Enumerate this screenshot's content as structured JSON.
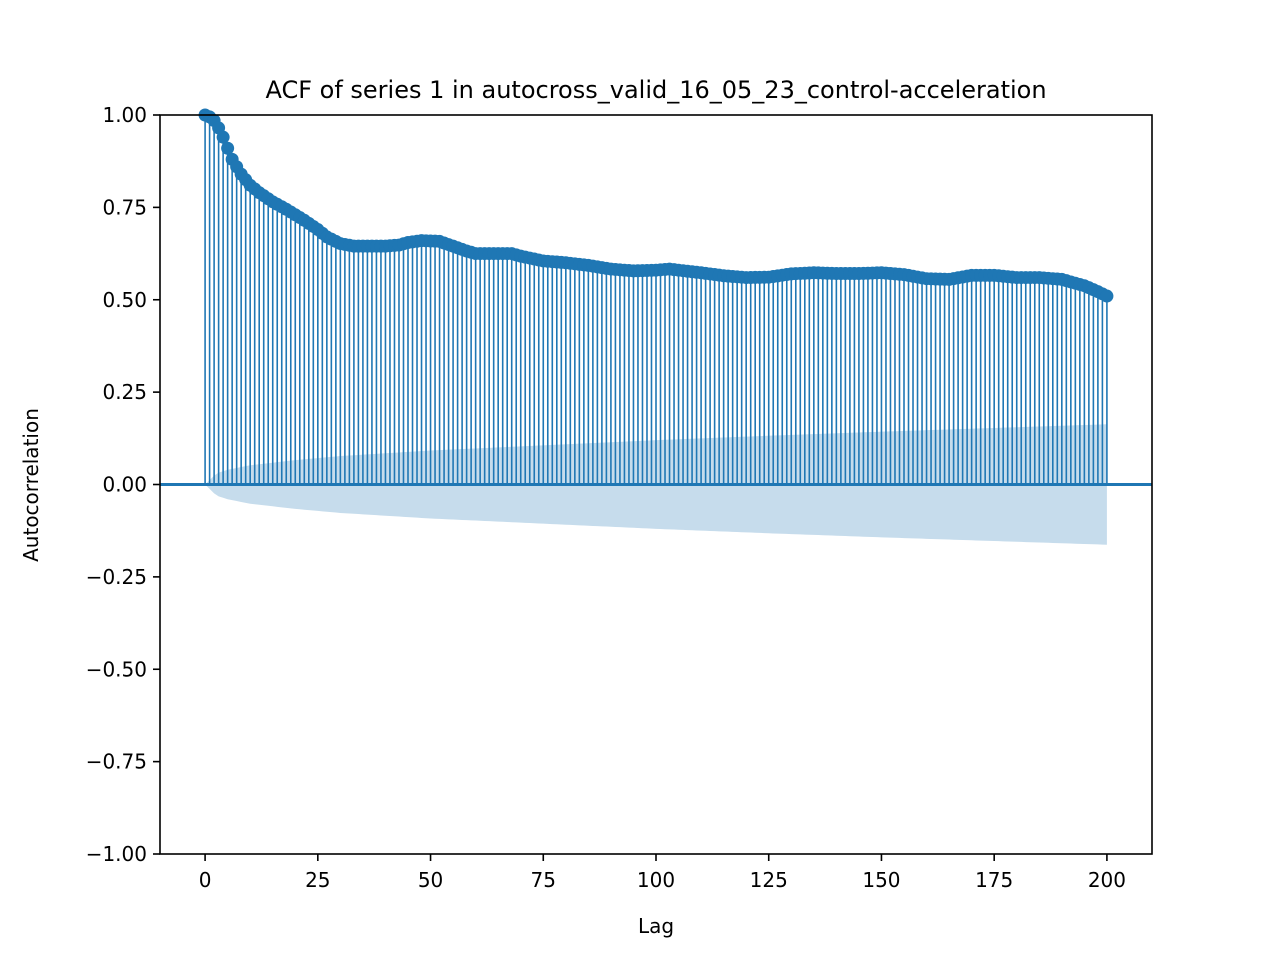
{
  "chart_data": {
    "type": "bar",
    "title": "ACF of series 1 in autocross_valid_16_05_23_control-acceleration",
    "xlabel": "Lag",
    "ylabel": "Autocorrelation",
    "xlim": [
      -10,
      210
    ],
    "ylim": [
      -1.0,
      1.0
    ],
    "xticks": [
      0,
      25,
      50,
      75,
      100,
      125,
      150,
      175,
      200
    ],
    "xtick_labels": [
      "0",
      "25",
      "50",
      "75",
      "100",
      "125",
      "150",
      "175",
      "200"
    ],
    "yticks": [
      -1.0,
      -0.75,
      -0.5,
      -0.25,
      0.0,
      0.25,
      0.5,
      0.75,
      1.0
    ],
    "ytick_labels": [
      "−1.00",
      "−0.75",
      "−0.50",
      "−0.25",
      "0.00",
      "0.25",
      "0.50",
      "0.75",
      "1.00"
    ],
    "grid": false,
    "legend": "none",
    "lags_count": 201,
    "acf_keypoints": [
      [
        0,
        1.0
      ],
      [
        1,
        0.995
      ],
      [
        2,
        0.985
      ],
      [
        3,
        0.965
      ],
      [
        4,
        0.94
      ],
      [
        5,
        0.91
      ],
      [
        6,
        0.88
      ],
      [
        8,
        0.84
      ],
      [
        10,
        0.81
      ],
      [
        12,
        0.79
      ],
      [
        15,
        0.765
      ],
      [
        18,
        0.745
      ],
      [
        20,
        0.73
      ],
      [
        22,
        0.715
      ],
      [
        25,
        0.69
      ],
      [
        27,
        0.67
      ],
      [
        30,
        0.652
      ],
      [
        33,
        0.645
      ],
      [
        35,
        0.645
      ],
      [
        40,
        0.645
      ],
      [
        43,
        0.648
      ],
      [
        45,
        0.655
      ],
      [
        48,
        0.66
      ],
      [
        52,
        0.658
      ],
      [
        55,
        0.645
      ],
      [
        58,
        0.632
      ],
      [
        60,
        0.625
      ],
      [
        65,
        0.625
      ],
      [
        68,
        0.625
      ],
      [
        70,
        0.618
      ],
      [
        75,
        0.605
      ],
      [
        80,
        0.6
      ],
      [
        85,
        0.593
      ],
      [
        90,
        0.583
      ],
      [
        95,
        0.578
      ],
      [
        100,
        0.58
      ],
      [
        103,
        0.583
      ],
      [
        105,
        0.58
      ],
      [
        110,
        0.573
      ],
      [
        115,
        0.565
      ],
      [
        120,
        0.56
      ],
      [
        125,
        0.561
      ],
      [
        130,
        0.57
      ],
      [
        135,
        0.573
      ],
      [
        140,
        0.571
      ],
      [
        145,
        0.571
      ],
      [
        150,
        0.573
      ],
      [
        155,
        0.568
      ],
      [
        160,
        0.557
      ],
      [
        165,
        0.555
      ],
      [
        170,
        0.566
      ],
      [
        175,
        0.566
      ],
      [
        180,
        0.56
      ],
      [
        185,
        0.56
      ],
      [
        190,
        0.555
      ],
      [
        195,
        0.538
      ],
      [
        198,
        0.522
      ],
      [
        200,
        0.51
      ]
    ],
    "confint_keypoints": [
      [
        1,
        0.012
      ],
      [
        2,
        0.024
      ],
      [
        3,
        0.032
      ],
      [
        5,
        0.04
      ],
      [
        10,
        0.052
      ],
      [
        20,
        0.066
      ],
      [
        30,
        0.077
      ],
      [
        50,
        0.092
      ],
      [
        75,
        0.106
      ],
      [
        100,
        0.12
      ],
      [
        125,
        0.132
      ],
      [
        150,
        0.143
      ],
      [
        175,
        0.153
      ],
      [
        200,
        0.163
      ]
    ],
    "colors": {
      "stem": "#1f77b4",
      "marker": "#1f77b4",
      "zero_line": "#1f77b4",
      "confidence_band": "#c6dcec"
    }
  }
}
